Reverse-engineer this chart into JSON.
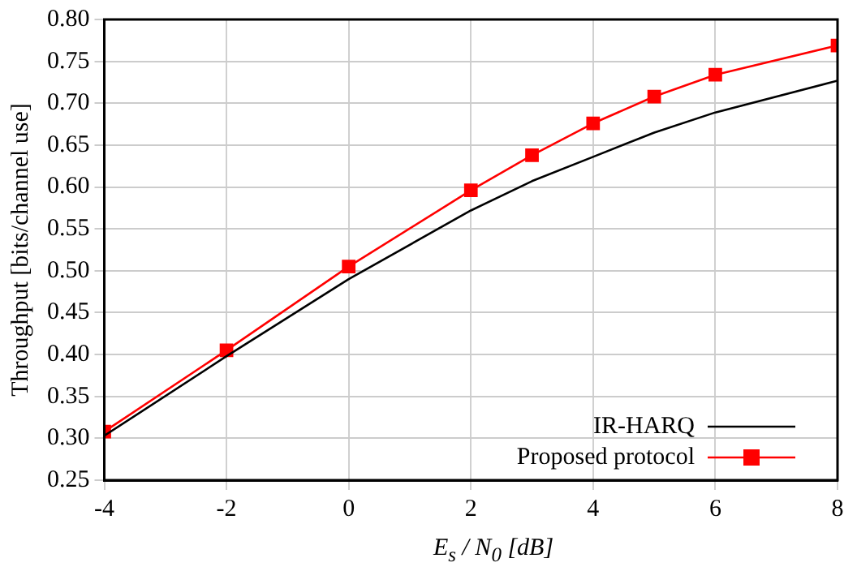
{
  "chart_data": {
    "type": "line",
    "xlabel": "E$_{s}$ / N$_{0}$ [dB]",
    "ylabel": "Throughput [bits/channel use]",
    "x": [
      -4,
      -2,
      0,
      2,
      3,
      4,
      5,
      6,
      8
    ],
    "series": [
      {
        "name": "IR-HARQ",
        "color": "#000000",
        "marker": "none",
        "values": [
          0.303,
          0.398,
          0.49,
          0.572,
          0.607,
          0.636,
          0.665,
          0.689,
          0.727
        ]
      },
      {
        "name": "Proposed protocol",
        "color": "#ff0000",
        "marker": "square",
        "values": [
          0.308,
          0.405,
          0.505,
          0.596,
          0.638,
          0.676,
          0.708,
          0.734,
          0.769
        ]
      }
    ],
    "xlim": [
      -4,
      8
    ],
    "xticks": [
      -4,
      -2,
      0,
      2,
      4,
      6,
      8
    ],
    "ylim": [
      0.25,
      0.8
    ],
    "yticks": [
      {
        "value": 0.25,
        "label": "0.25"
      },
      {
        "value": 0.3,
        "label": "0.30"
      },
      {
        "value": 0.35,
        "label": "0.35"
      },
      {
        "value": 0.4,
        "label": "0.40"
      },
      {
        "value": 0.45,
        "label": "0.45"
      },
      {
        "value": 0.5,
        "label": "0.50"
      },
      {
        "value": 0.55,
        "label": "0.55"
      },
      {
        "value": 0.6,
        "label": "0.60"
      },
      {
        "value": 0.65,
        "label": "0.65"
      },
      {
        "value": 0.7,
        "label": "0.70"
      },
      {
        "value": 0.75,
        "label": "0.75"
      },
      {
        "value": 0.8,
        "label": "0.80"
      }
    ],
    "grid": true,
    "legend": "bottom right"
  }
}
